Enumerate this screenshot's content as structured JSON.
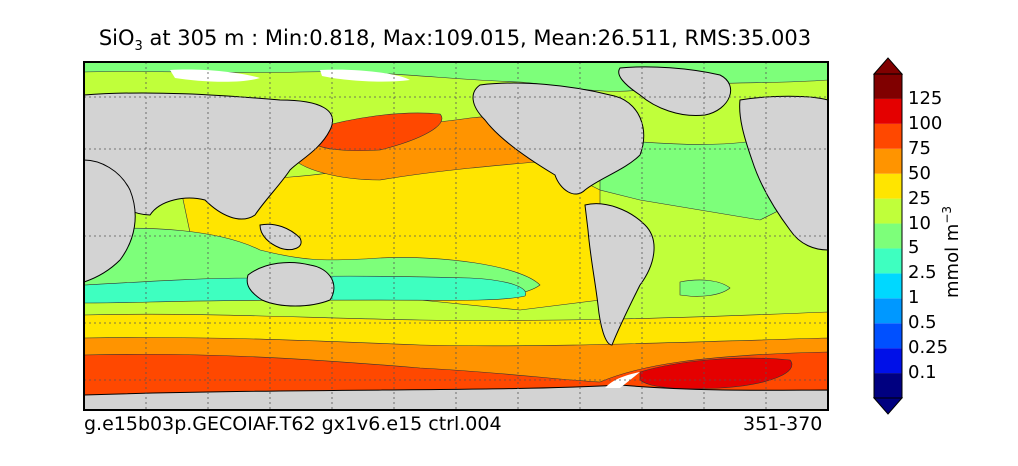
{
  "title": {
    "variable": "SiO",
    "subscript": "3",
    "rest": " at 305 m : Min:0.818, Max:109.015, Mean:26.511, RMS:35.003"
  },
  "footer": {
    "left": "g.e15b03p.GECOIAF.T62 gx1v6.e15 ctrl.004",
    "right": "351-370"
  },
  "colorbar": {
    "label_text": "mmol m",
    "label_sup": "−3",
    "ticks": [
      "125",
      "100",
      "75",
      "50",
      "25",
      "10",
      "5",
      "2.5",
      "1",
      "0.5",
      "0.25",
      "0.1"
    ],
    "colors": [
      "#000080",
      "#0010e8",
      "#0050ff",
      "#0098ff",
      "#00d8ff",
      "#3effc0",
      "#7dff7a",
      "#c0ff3a",
      "#ffe500",
      "#ff9400",
      "#ff4800",
      "#e40000",
      "#800000"
    ]
  },
  "map": {
    "land_color": "#d3d3d3",
    "missing_color": "#ffffff"
  }
}
